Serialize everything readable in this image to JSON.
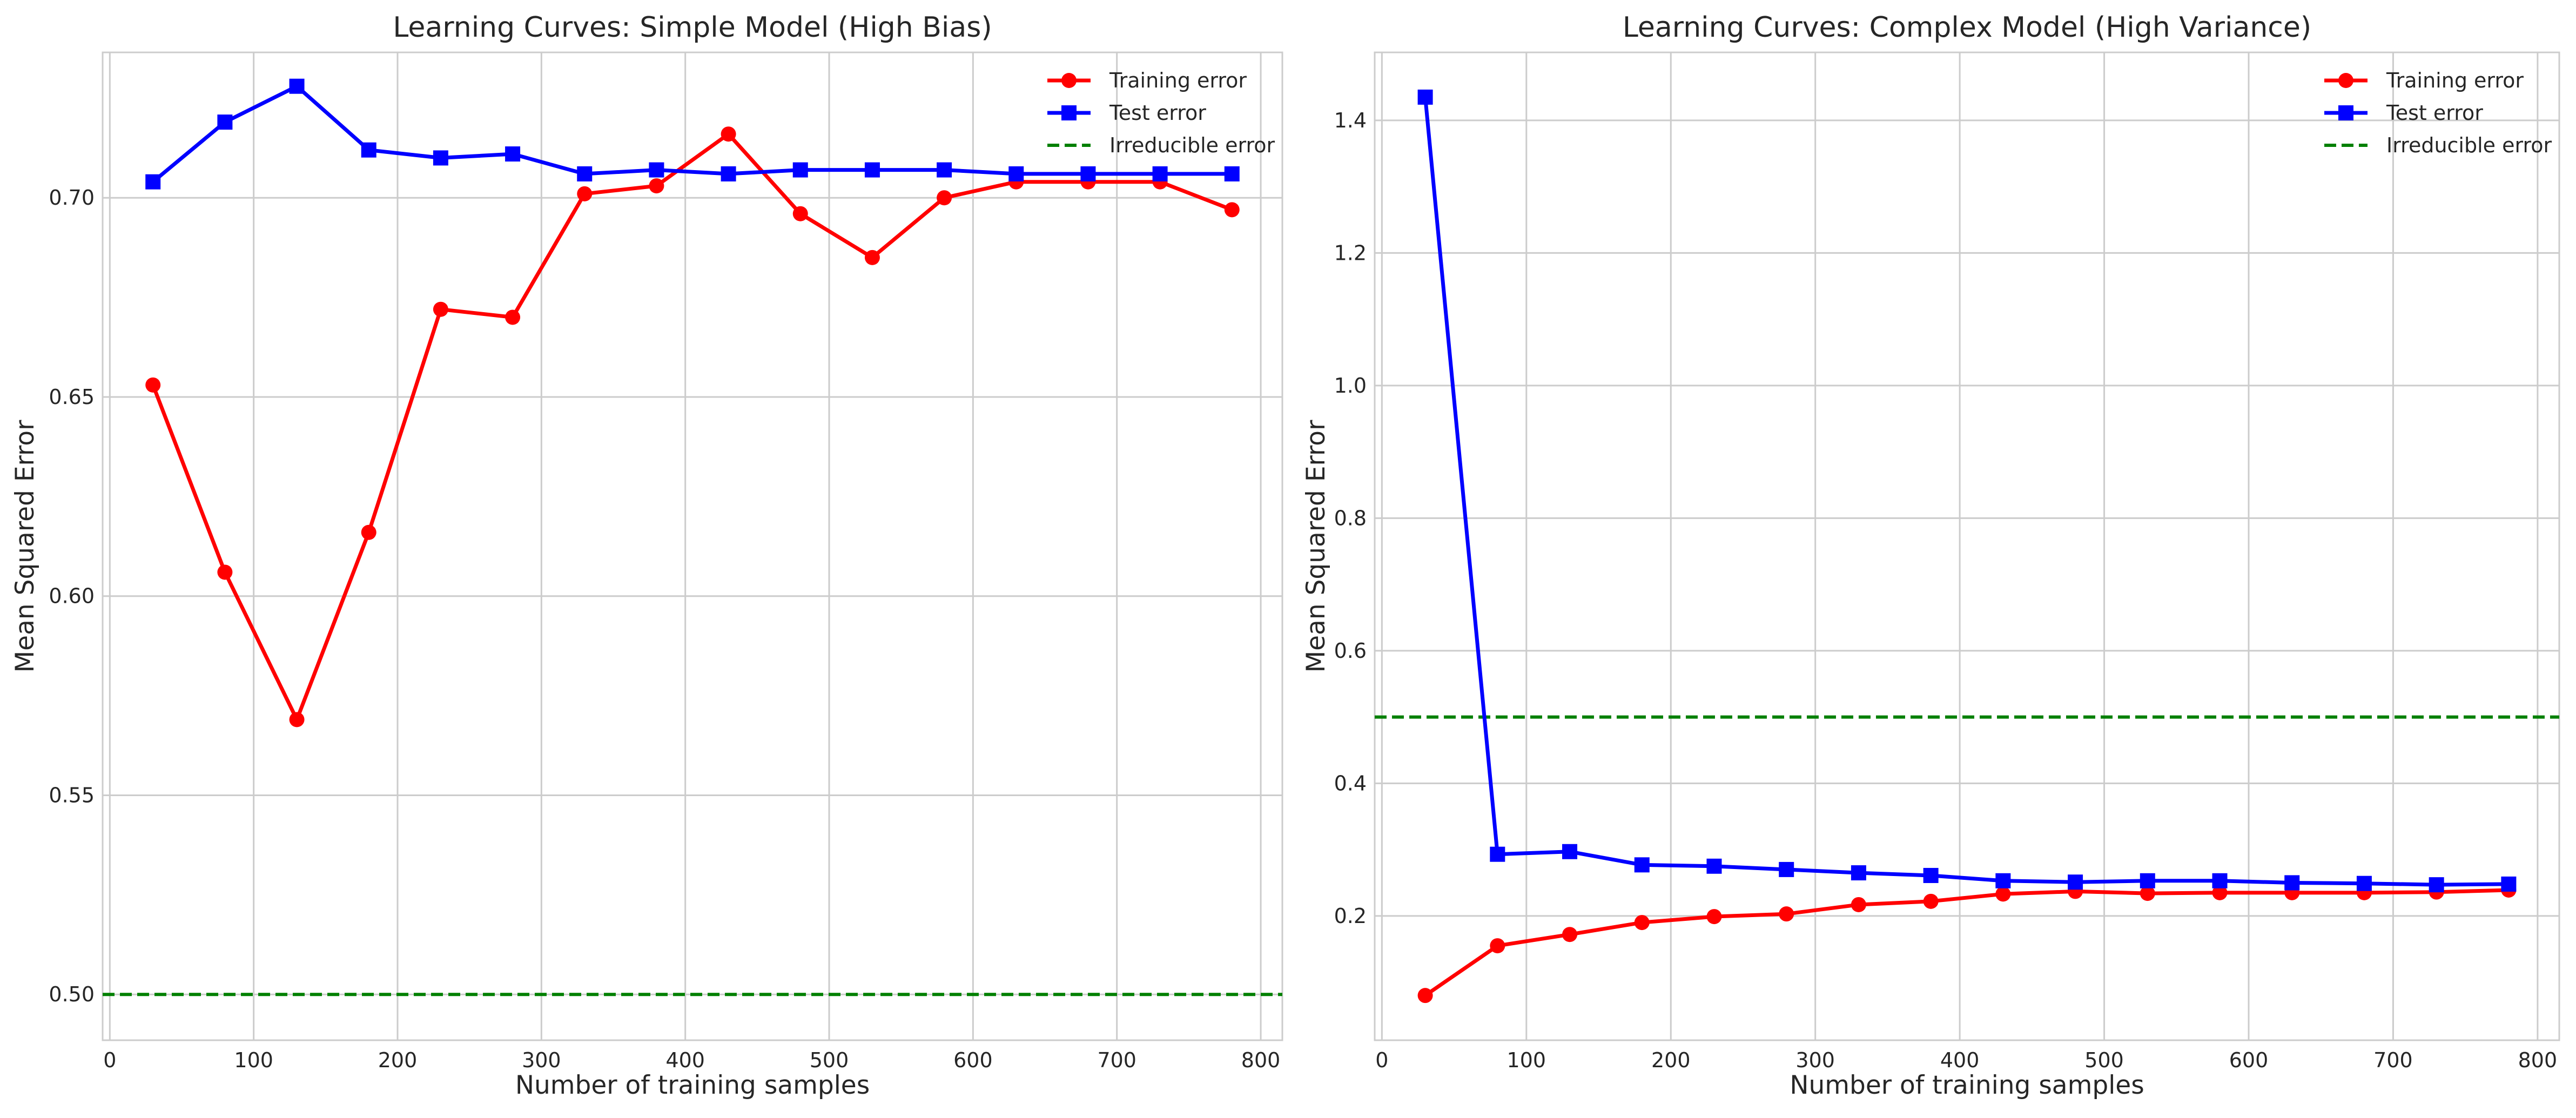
{
  "colors": {
    "training": "#ff0000",
    "test": "#0000ff",
    "irreducible": "#008000",
    "grid": "#cccccc",
    "axes_edge": "#cccccc"
  },
  "chart_data": [
    {
      "type": "line",
      "title": "Learning Curves: Simple Model (High Bias)",
      "xlabel": "Number of training samples",
      "ylabel": "Mean Squared Error",
      "xlim": [
        -5,
        815
      ],
      "ylim": [
        0.4885,
        0.7365
      ],
      "xticks": [
        0,
        100,
        200,
        300,
        400,
        500,
        600,
        700,
        800
      ],
      "xtick_labels": [
        "0",
        "100",
        "200",
        "300",
        "400",
        "500",
        "600",
        "700",
        "800"
      ],
      "yticks": [
        0.5,
        0.55,
        0.6,
        0.65,
        0.7
      ],
      "ytick_labels": [
        "0.50",
        "0.55",
        "0.60",
        "0.65",
        "0.70"
      ],
      "grid": true,
      "legend_position": "top-right",
      "x": [
        30,
        80,
        130,
        180,
        230,
        280,
        330,
        380,
        430,
        480,
        530,
        580,
        630,
        680,
        730,
        780
      ],
      "series": [
        {
          "name": "Training error",
          "marker": "circle",
          "color": "#ff0000",
          "values": [
            0.653,
            0.606,
            0.569,
            0.616,
            0.672,
            0.67,
            0.701,
            0.703,
            0.716,
            0.696,
            0.685,
            0.7,
            0.704,
            0.704,
            0.704,
            0.697
          ]
        },
        {
          "name": "Test error",
          "marker": "square",
          "color": "#0000ff",
          "values": [
            0.704,
            0.719,
            0.728,
            0.712,
            0.71,
            0.711,
            0.706,
            0.707,
            0.706,
            0.707,
            0.707,
            0.707,
            0.706,
            0.706,
            0.706,
            0.706
          ]
        }
      ],
      "hlines": [
        {
          "name": "Irreducible error",
          "y": 0.5,
          "color": "#008000",
          "style": "dashed"
        }
      ]
    },
    {
      "type": "line",
      "title": "Learning Curves: Complex Model (High Variance)",
      "xlabel": "Number of training samples",
      "ylabel": "Mean Squared Error",
      "xlim": [
        -5,
        815
      ],
      "ylim": [
        0.0125,
        1.5025
      ],
      "xticks": [
        0,
        100,
        200,
        300,
        400,
        500,
        600,
        700,
        800
      ],
      "xtick_labels": [
        "0",
        "100",
        "200",
        "300",
        "400",
        "500",
        "600",
        "700",
        "800"
      ],
      "yticks": [
        0.2,
        0.4,
        0.6,
        0.8,
        1.0,
        1.2,
        1.4
      ],
      "ytick_labels": [
        "0.2",
        "0.4",
        "0.6",
        "0.8",
        "1.0",
        "1.2",
        "1.4"
      ],
      "grid": true,
      "legend_position": "top-right",
      "x": [
        30,
        80,
        130,
        180,
        230,
        280,
        330,
        380,
        430,
        480,
        530,
        580,
        630,
        680,
        730,
        780
      ],
      "series": [
        {
          "name": "Training error",
          "marker": "circle",
          "color": "#ff0000",
          "values": [
            0.08,
            0.155,
            0.172,
            0.19,
            0.199,
            0.203,
            0.217,
            0.222,
            0.233,
            0.237,
            0.234,
            0.235,
            0.235,
            0.235,
            0.236,
            0.239
          ]
        },
        {
          "name": "Test error",
          "marker": "square",
          "color": "#0000ff",
          "values": [
            1.435,
            0.293,
            0.297,
            0.277,
            0.275,
            0.27,
            0.265,
            0.261,
            0.253,
            0.251,
            0.253,
            0.253,
            0.25,
            0.249,
            0.247,
            0.248
          ]
        }
      ],
      "hlines": [
        {
          "name": "Irreducible error",
          "y": 0.5,
          "color": "#008000",
          "style": "dashed"
        }
      ]
    }
  ]
}
